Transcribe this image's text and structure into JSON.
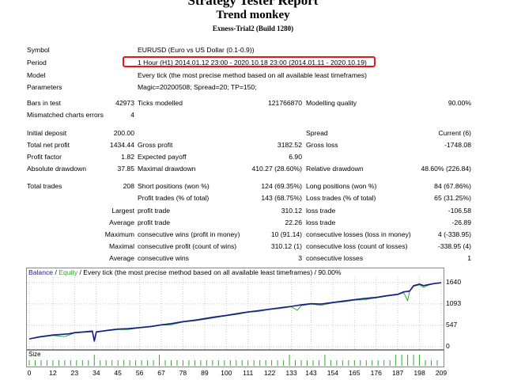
{
  "header": {
    "title": "Strategy Tester Report",
    "expert": "Trend monkey",
    "server": "Exness-Trial2 (Build 1280)"
  },
  "info": {
    "symbol_label": "Symbol",
    "symbol_value": "EURUSD (Euro vs US Dollar (0.1-0.9))",
    "period_label": "Period",
    "period_value": "1 Hour (H1) 2014.01.12 23:00 - 2020.10.18 23:00 (2014.01.11 - 2020.10.19)",
    "model_label": "Model",
    "model_value": "Every tick (the most precise method based on all available least timeframes)",
    "parameters_label": "Parameters",
    "parameters_value": "Magic=20200508; Spread=20; TP=150;"
  },
  "stats": {
    "bars_in_test_label": "Bars in test",
    "bars_in_test": "42973",
    "ticks_modelled_label": "Ticks modelled",
    "ticks_modelled": "121766870",
    "modelling_quality_label": "Modelling quality",
    "modelling_quality": "90.00%",
    "mismatched_label": "Mismatched charts errors",
    "mismatched": "4",
    "initial_deposit_label": "Initial deposit",
    "initial_deposit": "200.00",
    "spread_label": "Spread",
    "spread": "Current (6)",
    "net_profit_label": "Total net profit",
    "net_profit": "1434.44",
    "gross_profit_label": "Gross profit",
    "gross_profit": "3182.52",
    "gross_loss_label": "Gross loss",
    "gross_loss": "-1748.08",
    "profit_factor_label": "Profit factor",
    "profit_factor": "1.82",
    "expected_payoff_label": "Expected payoff",
    "expected_payoff": "6.90",
    "abs_drawdown_label": "Absolute drawdown",
    "abs_drawdown": "37.85",
    "max_drawdown_label": "Maximal drawdown",
    "max_drawdown": "410.27 (28.60%)",
    "rel_drawdown_label": "Relative drawdown",
    "rel_drawdown": "48.60% (226.84)",
    "total_trades_label": "Total trades",
    "total_trades": "208",
    "short_label": "Short positions (won %)",
    "short": "124 (69.35%)",
    "long_label": "Long positions (won %)",
    "long": "84 (67.86%)",
    "profit_trades_label": "Profit trades (% of total)",
    "profit_trades": "143 (68.75%)",
    "loss_trades_label": "Loss trades (% of total)",
    "loss_trades": "65 (31.25%)",
    "largest": "Largest",
    "largest_profit_label": "profit trade",
    "largest_profit": "310.12",
    "largest_loss_label": "loss trade",
    "largest_loss": "-106.58",
    "average": "Average",
    "avg_profit_label": "profit trade",
    "avg_profit": "22.26",
    "avg_loss_label": "loss trade",
    "avg_loss": "-26.89",
    "maximum": "Maximum",
    "max_cons_wins_label": "consecutive wins (profit in money)",
    "max_cons_wins": "10 (91.14)",
    "max_cons_losses_label": "consecutive losses (loss in money)",
    "max_cons_losses": "4 (-338.95)",
    "maximal": "Maximal",
    "maximal_cons_profit_label": "consecutive profit (count of wins)",
    "maximal_cons_profit": "310.12 (1)",
    "maximal_cons_loss_label": "consecutive loss (count of losses)",
    "maximal_cons_loss": "-338.95 (4)",
    "average2": "Average",
    "avg_cons_wins_label": "consecutive wins",
    "avg_cons_wins": "3",
    "avg_cons_losses_label": "consecutive losses",
    "avg_cons_losses": "1"
  },
  "chart": {
    "legend_balance": "Balance",
    "legend_sep": " / ",
    "legend_equity": "Equity",
    "legend_rest": " / Every tick (the most precise method based on all available least timeframes) / 90.00%",
    "size_label": "Size",
    "colors": {
      "balance": "#1a1a8c",
      "equity": "#2fa82f",
      "size": "#2fa82f",
      "highlight": "#e01a1a"
    }
  },
  "chart_data": {
    "type": "line",
    "title": "",
    "xlabel": "",
    "ylabel": "",
    "x_ticks": [
      "0",
      "12",
      "23",
      "34",
      "45",
      "56",
      "67",
      "78",
      "89",
      "100",
      "111",
      "122",
      "133",
      "143",
      "154",
      "165",
      "176",
      "187",
      "198",
      "209"
    ],
    "y_ticks": [
      "1640",
      "1093",
      "547",
      "0"
    ],
    "xlim": [
      0,
      209
    ],
    "ylim": [
      0,
      1900
    ],
    "series": [
      {
        "name": "Balance",
        "points": [
          [
            0,
            200
          ],
          [
            5,
            250
          ],
          [
            12,
            300
          ],
          [
            20,
            330
          ],
          [
            23,
            360
          ],
          [
            28,
            380
          ],
          [
            32,
            400
          ],
          [
            33,
            150
          ],
          [
            34,
            380
          ],
          [
            40,
            420
          ],
          [
            45,
            450
          ],
          [
            50,
            460
          ],
          [
            56,
            490
          ],
          [
            62,
            520
          ],
          [
            67,
            560
          ],
          [
            72,
            590
          ],
          [
            78,
            640
          ],
          [
            84,
            680
          ],
          [
            89,
            720
          ],
          [
            94,
            760
          ],
          [
            100,
            800
          ],
          [
            106,
            850
          ],
          [
            111,
            890
          ],
          [
            116,
            920
          ],
          [
            122,
            960
          ],
          [
            128,
            1000
          ],
          [
            133,
            1030
          ],
          [
            138,
            1070
          ],
          [
            143,
            1100
          ],
          [
            148,
            1090
          ],
          [
            154,
            1130
          ],
          [
            160,
            1170
          ],
          [
            165,
            1200
          ],
          [
            170,
            1230
          ],
          [
            176,
            1260
          ],
          [
            181,
            1300
          ],
          [
            187,
            1340
          ],
          [
            190,
            1400
          ],
          [
            193,
            1420
          ],
          [
            195,
            1560
          ],
          [
            198,
            1600
          ],
          [
            200,
            1560
          ],
          [
            203,
            1590
          ],
          [
            206,
            1620
          ],
          [
            209,
            1634
          ]
        ]
      },
      {
        "name": "Equity",
        "points": [
          [
            0,
            200
          ],
          [
            5,
            240
          ],
          [
            12,
            290
          ],
          [
            18,
            260
          ],
          [
            23,
            350
          ],
          [
            28,
            370
          ],
          [
            32,
            380
          ],
          [
            33,
            120
          ],
          [
            34,
            370
          ],
          [
            40,
            410
          ],
          [
            45,
            440
          ],
          [
            50,
            440
          ],
          [
            56,
            480
          ],
          [
            62,
            510
          ],
          [
            67,
            550
          ],
          [
            72,
            560
          ],
          [
            78,
            630
          ],
          [
            84,
            660
          ],
          [
            89,
            700
          ],
          [
            94,
            740
          ],
          [
            100,
            790
          ],
          [
            106,
            830
          ],
          [
            111,
            880
          ],
          [
            116,
            900
          ],
          [
            122,
            950
          ],
          [
            128,
            980
          ],
          [
            133,
            1020
          ],
          [
            136,
            930
          ],
          [
            138,
            1050
          ],
          [
            143,
            1090
          ],
          [
            148,
            1060
          ],
          [
            154,
            1120
          ],
          [
            160,
            1150
          ],
          [
            165,
            1190
          ],
          [
            170,
            1200
          ],
          [
            176,
            1250
          ],
          [
            181,
            1290
          ],
          [
            187,
            1330
          ],
          [
            190,
            1380
          ],
          [
            192,
            1180
          ],
          [
            193,
            1410
          ],
          [
            195,
            1540
          ],
          [
            198,
            1580
          ],
          [
            200,
            1520
          ],
          [
            203,
            1580
          ],
          [
            206,
            1610
          ],
          [
            209,
            1634
          ]
        ]
      }
    ]
  }
}
